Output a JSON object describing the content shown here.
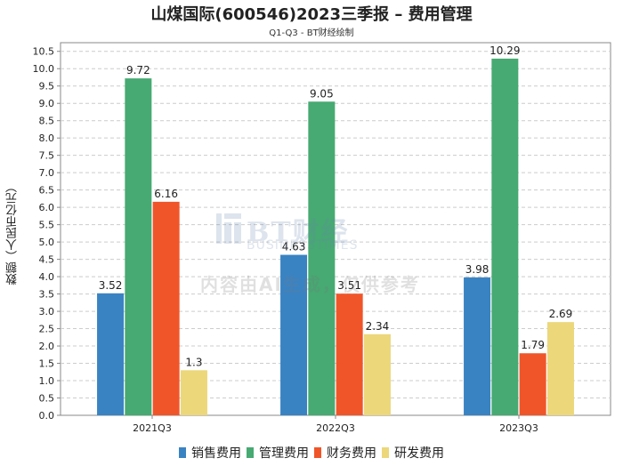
{
  "title": "山煤国际(600546)2023三季报 – 费用管理",
  "subtitle": "Q1-Q3 - BT财经绘制",
  "watermark": {
    "brand": "BT财经",
    "brand_sub": "BUSINESSTIMES",
    "notice": "内容由AI生成，仅供参考"
  },
  "colors": {
    "sales": "#3a83c3",
    "mgmt": "#46aa72",
    "fin": "#f0552a",
    "rd": "#ecd77a",
    "grid": "#cccccc",
    "axis": "#888888"
  },
  "chart_data": {
    "type": "bar",
    "title": "山煤国际(600546)2023三季报 – 费用管理",
    "subtitle": "Q1-Q3 - BT财经绘制",
    "xlabel": "",
    "ylabel": "数额（人民币亿元）",
    "ylim": [
      0,
      10.75
    ],
    "yticks": [
      "0.0",
      "0.5",
      "1.0",
      "1.5",
      "2.0",
      "2.5",
      "3.0",
      "3.5",
      "4.0",
      "4.5",
      "5.0",
      "5.5",
      "6.0",
      "6.5",
      "7.0",
      "7.5",
      "8.0",
      "8.5",
      "9.0",
      "9.5",
      "10.0",
      "10.5"
    ],
    "categories": [
      "2021Q3",
      "2022Q3",
      "2023Q3"
    ],
    "series": [
      {
        "name": "销售费用",
        "color": "#3a83c3",
        "values": [
          3.52,
          4.63,
          3.98
        ],
        "labels": [
          "3.52",
          "4.63",
          "3.98"
        ]
      },
      {
        "name": "管理费用",
        "color": "#46aa72",
        "values": [
          9.72,
          9.05,
          10.29
        ],
        "labels": [
          "9.72",
          "9.05",
          "10.29"
        ]
      },
      {
        "name": "财务费用",
        "color": "#f0552a",
        "values": [
          6.16,
          3.51,
          1.79
        ],
        "labels": [
          "6.16",
          "3.51",
          "1.79"
        ]
      },
      {
        "name": "研发费用",
        "color": "#ecd77a",
        "values": [
          1.3,
          2.34,
          2.69
        ],
        "labels": [
          "1.3",
          "2.34",
          "2.69"
        ]
      }
    ],
    "grid": true,
    "legend_position": "bottom-center"
  }
}
